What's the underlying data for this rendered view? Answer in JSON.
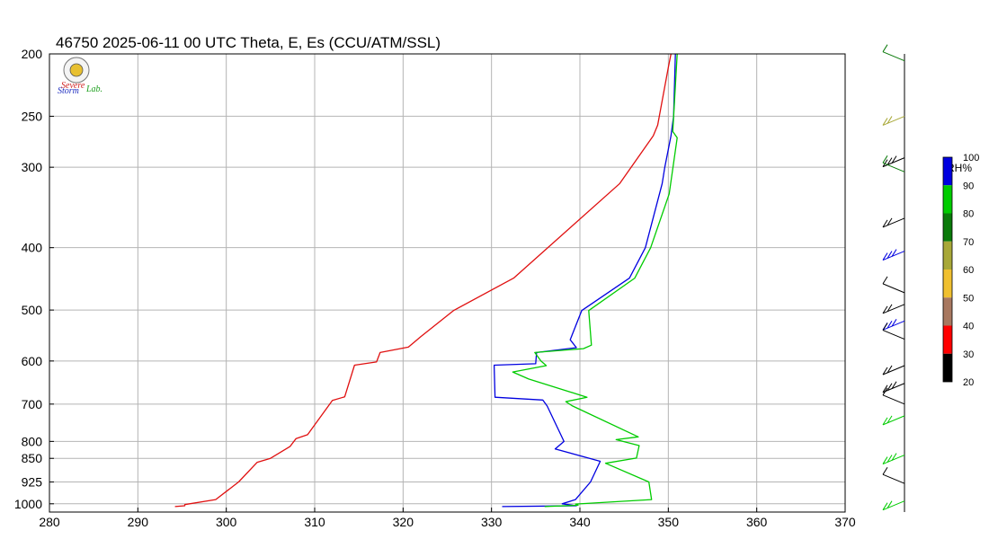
{
  "chart_data": {
    "type": "line",
    "title": "46750  2025-06-11 00 UTC  Theta, E, Es (CCU/ATM/SSL)",
    "xlim": [
      280,
      370
    ],
    "x_ticks": [
      "280",
      "290",
      "300",
      "310",
      "320",
      "330",
      "340",
      "350",
      "360",
      "370"
    ],
    "y_pressure_range": [
      1030,
      200
    ],
    "y_ticks": [
      "200",
      "250",
      "300",
      "400",
      "500",
      "600",
      "700",
      "800",
      "850",
      "925",
      "1000"
    ],
    "grid": true,
    "series": [
      {
        "color": "#e01010",
        "points": [
          [
            294.2,
            1010
          ],
          [
            295.3,
            1007
          ],
          [
            295.3,
            1003
          ],
          [
            298.8,
            985
          ],
          [
            301.4,
            925
          ],
          [
            303.5,
            862
          ],
          [
            305,
            850
          ],
          [
            307.2,
            815
          ],
          [
            307.9,
            792
          ],
          [
            309.2,
            781
          ],
          [
            312,
            691
          ],
          [
            313.4,
            682
          ],
          [
            314.5,
            609
          ],
          [
            317,
            602
          ],
          [
            317.4,
            582
          ],
          [
            320.6,
            571
          ],
          [
            322,
            550
          ],
          [
            325.7,
            501
          ],
          [
            332.5,
            446
          ],
          [
            344.5,
            318
          ],
          [
            348.3,
            268
          ],
          [
            348.8,
            258
          ],
          [
            350,
            210
          ],
          [
            350.3,
            200
          ]
        ]
      },
      {
        "color": "#0000e0",
        "points": [
          [
            331.2,
            1010
          ],
          [
            339.6,
            1007
          ],
          [
            338,
            1000
          ],
          [
            339.5,
            985
          ],
          [
            341.2,
            925
          ],
          [
            342.3,
            859
          ],
          [
            337.2,
            822
          ],
          [
            338.2,
            800
          ],
          [
            336.3,
            705
          ],
          [
            335.8,
            690
          ],
          [
            330.4,
            683
          ],
          [
            330.3,
            609
          ],
          [
            335,
            606
          ],
          [
            335.1,
            582
          ],
          [
            339.6,
            572
          ],
          [
            338.9,
            556
          ],
          [
            340.2,
            501
          ],
          [
            345.6,
            446
          ],
          [
            347.4,
            400
          ],
          [
            349.3,
            318
          ],
          [
            349.6,
            300
          ],
          [
            350.3,
            268
          ],
          [
            350.6,
            250
          ],
          [
            350.8,
            200
          ]
        ]
      },
      {
        "color": "#00cc00",
        "points": [
          [
            336,
            1010
          ],
          [
            339.8,
            1005
          ],
          [
            339.5,
            1001
          ],
          [
            348.1,
            985
          ],
          [
            347.8,
            925
          ],
          [
            342.9,
            865
          ],
          [
            346.4,
            849
          ],
          [
            346.7,
            812
          ],
          [
            344.1,
            795
          ],
          [
            346.6,
            787
          ],
          [
            339.1,
            704
          ],
          [
            338.4,
            694
          ],
          [
            340.8,
            683
          ],
          [
            334.2,
            640
          ],
          [
            332.4,
            624
          ],
          [
            336.2,
            610
          ],
          [
            335.6,
            600
          ],
          [
            334.9,
            582
          ],
          [
            340.4,
            574
          ],
          [
            341.3,
            567
          ],
          [
            341,
            501
          ],
          [
            346.2,
            446
          ],
          [
            348,
            400
          ],
          [
            350.1,
            330
          ],
          [
            351,
            270
          ],
          [
            350.5,
            264
          ],
          [
            351,
            200
          ]
        ]
      }
    ],
    "colorbar": {
      "label": "RH%",
      "tick_labels": [
        "100",
        "90",
        "80",
        "70",
        "60",
        "50",
        "40",
        "30",
        "20"
      ],
      "colors": [
        "#0000e0",
        "#00cc00",
        "#0a7a0a",
        "#a8a838",
        "#f0c030",
        "#a87860",
        "#ff0000",
        "#000000"
      ]
    },
    "wind_barbs": [
      {
        "p": 205,
        "color": "#0a7a0a"
      },
      {
        "p": 250,
        "color": "#a8a838"
      },
      {
        "p": 290,
        "color": "#000000"
      },
      {
        "p": 305,
        "color": "#0a7a0a"
      },
      {
        "p": 360,
        "color": "#000000"
      },
      {
        "p": 405,
        "color": "#0000e0"
      },
      {
        "p": 470,
        "color": "#000000"
      },
      {
        "p": 490,
        "color": "#000000"
      },
      {
        "p": 520,
        "color": "#0000e0"
      },
      {
        "p": 555,
        "color": "#000000"
      },
      {
        "p": 610,
        "color": "#000000"
      },
      {
        "p": 650,
        "color": "#000000"
      },
      {
        "p": 700,
        "color": "#000000"
      },
      {
        "p": 730,
        "color": "#00cc00"
      },
      {
        "p": 840,
        "color": "#00cc00"
      },
      {
        "p": 930,
        "color": "#000000"
      },
      {
        "p": 990,
        "color": "#00cc00"
      }
    ],
    "logo": {
      "lines": [
        "Severe",
        "Storm",
        "Lab."
      ]
    }
  }
}
